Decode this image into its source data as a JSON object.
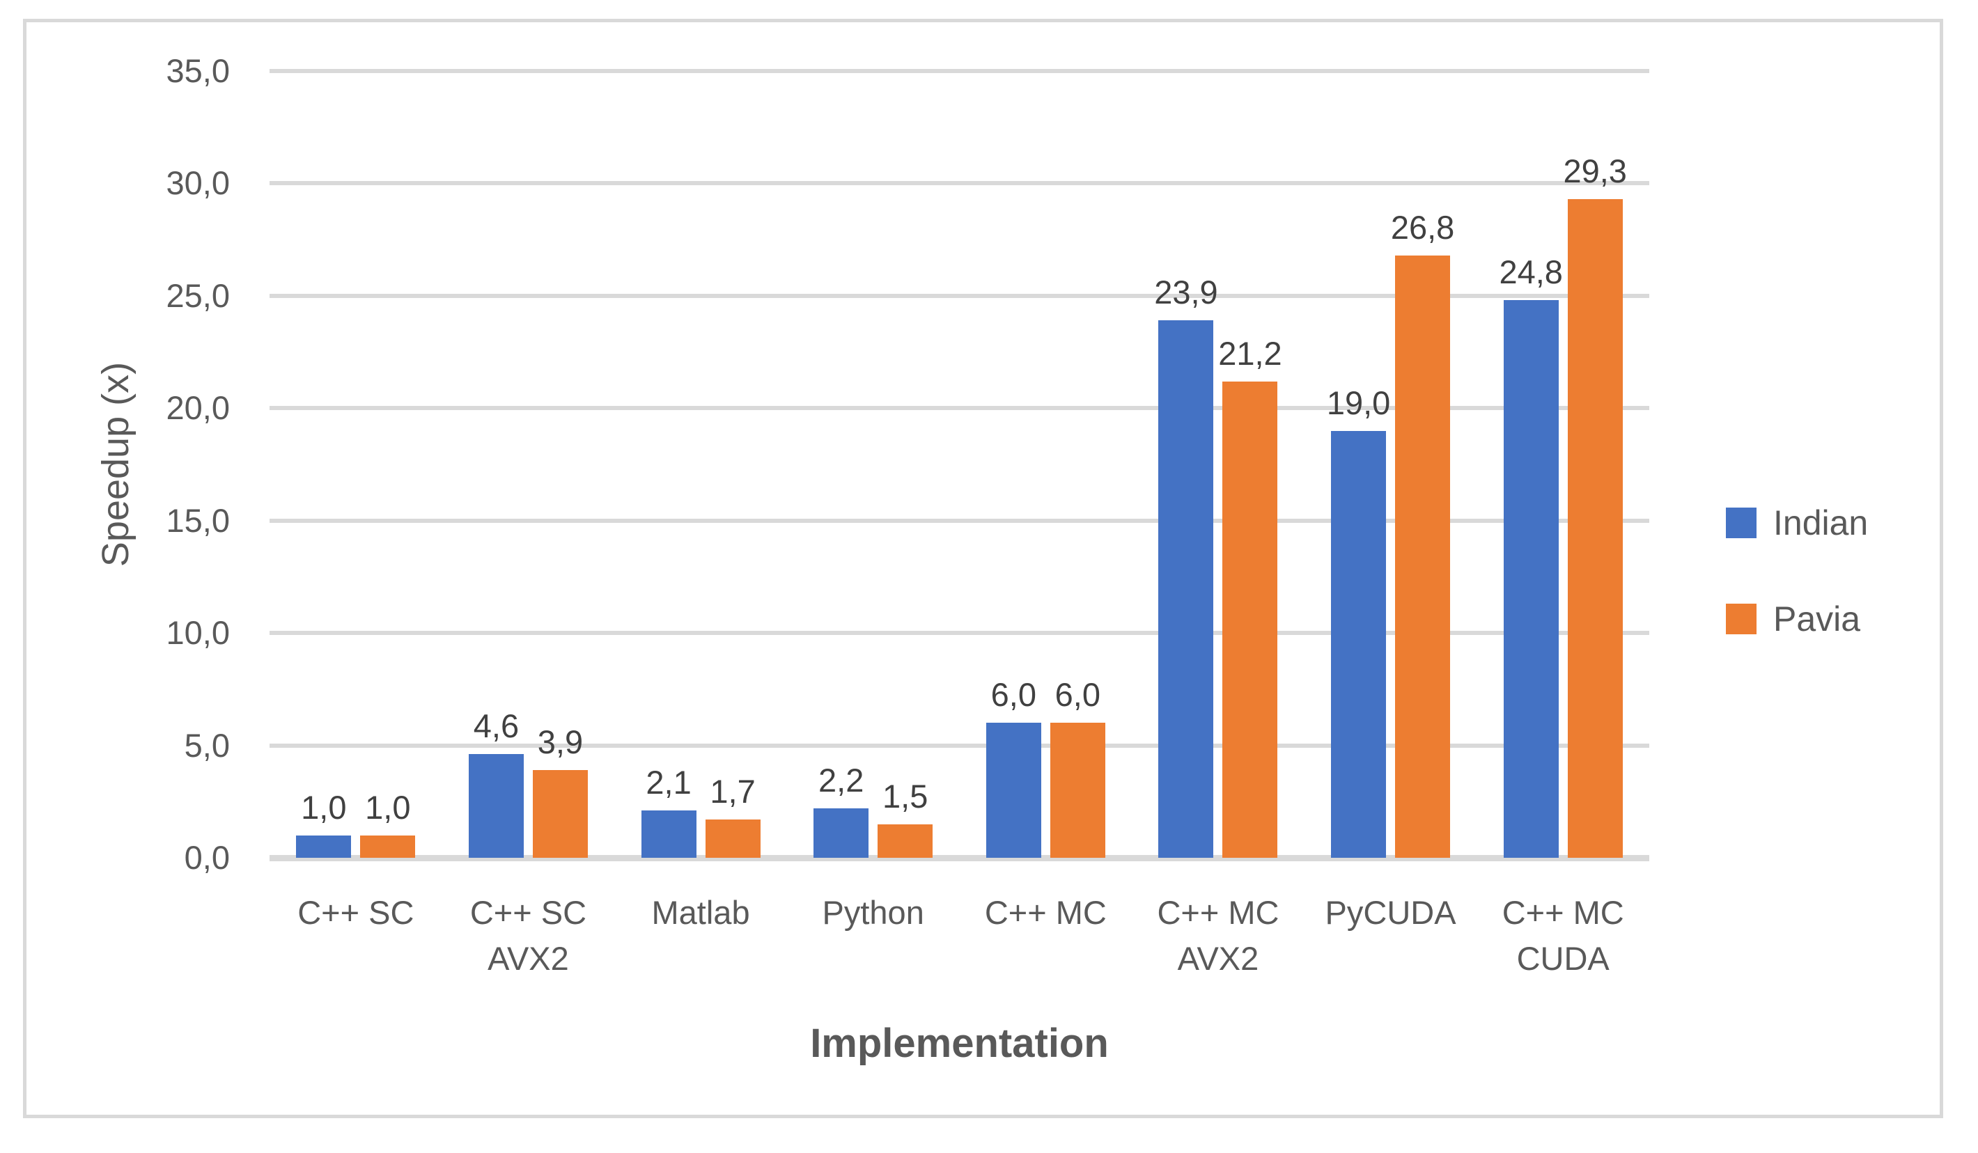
{
  "chart_data": {
    "type": "bar",
    "title": "",
    "xlabel": "Implementation",
    "ylabel": "Speedup (x)",
    "categories": [
      "C++ SC",
      "C++ SC\nAVX2",
      "Matlab",
      "Python",
      "C++ MC",
      "C++ MC\nAVX2",
      "PyCUDA",
      "C++ MC\nCUDA"
    ],
    "series": [
      {
        "name": "Indian",
        "color": "#4472C4",
        "values": [
          1.0,
          4.6,
          2.1,
          2.2,
          6.0,
          23.9,
          19.0,
          24.8
        ]
      },
      {
        "name": "Pavia",
        "color": "#ED7D31",
        "values": [
          1.0,
          3.9,
          1.7,
          1.5,
          6.0,
          21.2,
          26.8,
          29.3
        ]
      }
    ],
    "value_labels": [
      [
        "1,0",
        "4,6",
        "2,1",
        "2,2",
        "6,0",
        "23,9",
        "19,0",
        "24,8"
      ],
      [
        "1,0",
        "3,9",
        "1,7",
        "1,5",
        "6,0",
        "21,2",
        "26,8",
        "29,3"
      ]
    ],
    "ylim": [
      0,
      35
    ],
    "ytick_step": 5,
    "ytick_labels": [
      "0,0",
      "5,0",
      "10,0",
      "15,0",
      "20,0",
      "25,0",
      "30,0",
      "35,0"
    ],
    "grid": true,
    "legend_position": "right",
    "decimal_separator": ","
  },
  "colors": {
    "gridline": "#D9D9D9",
    "frame_border": "#D9D9D9",
    "axis_text": "#595959",
    "data_label_text": "#404040",
    "series_indian": "#4472C4",
    "series_pavia": "#ED7D31",
    "background": "#FFFFFF"
  }
}
